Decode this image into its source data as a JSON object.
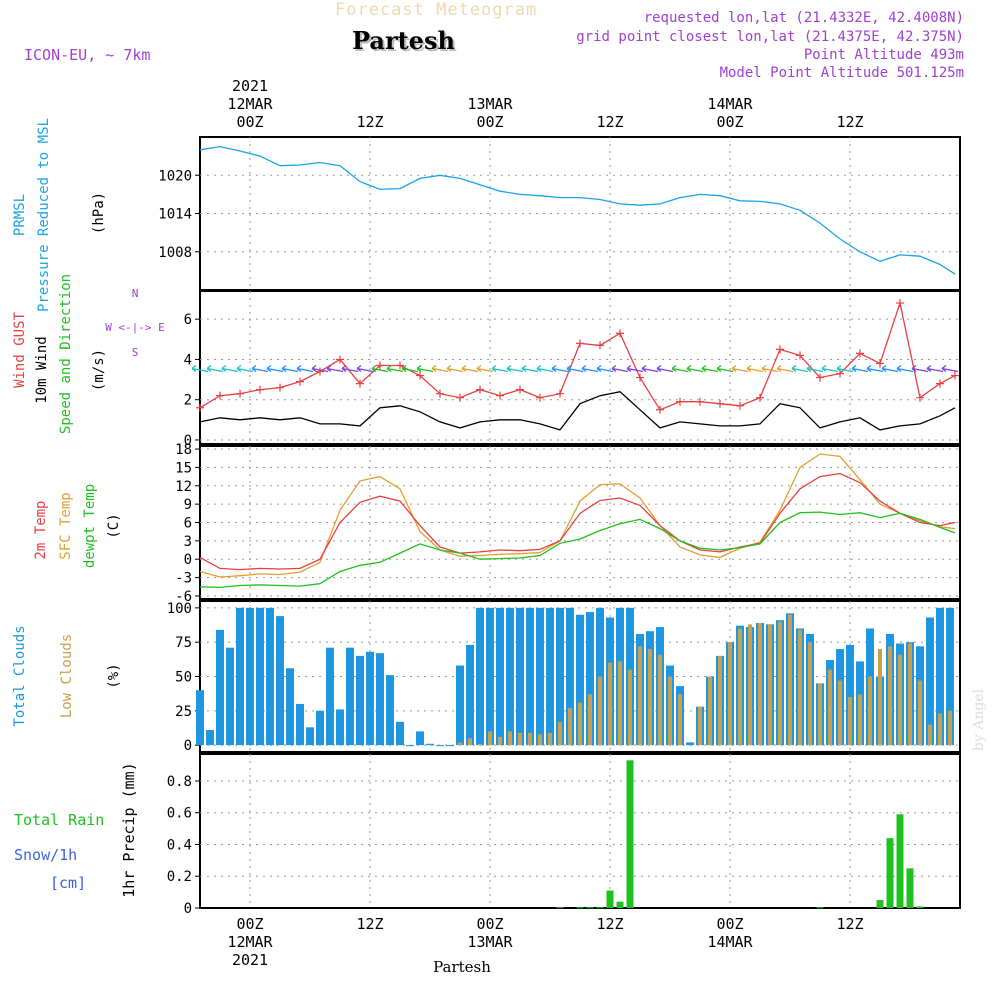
{
  "header": {
    "title": "Forecast Meteogram",
    "location": "Partesh",
    "model": "ICON-EU, ~ 7km",
    "requested": "requested lon,lat (21.4332E, 42.4008N)",
    "grid_point": "grid point closest lon,lat (21.4375E, 42.375N)",
    "point_altitude": "Point Altitude 493m",
    "model_altitude": "Model Point Altitude 501.125m"
  },
  "footer": {
    "location": "Partesh",
    "credit": "by Angel"
  },
  "time_axis": {
    "top": [
      {
        "t": 0,
        "lines": [
          "2021",
          "12MAR",
          "00Z"
        ]
      },
      {
        "t": 12,
        "lines": [
          "12Z"
        ]
      },
      {
        "t": 24,
        "lines": [
          "13MAR",
          "00Z"
        ]
      },
      {
        "t": 36,
        "lines": [
          "12Z"
        ]
      },
      {
        "t": 48,
        "lines": [
          "14MAR",
          "00Z"
        ]
      },
      {
        "t": 60,
        "lines": [
          "12Z"
        ]
      }
    ],
    "bottom": [
      {
        "t": 0,
        "lines": [
          "00Z",
          "12MAR",
          "2021"
        ]
      },
      {
        "t": 12,
        "lines": [
          "12Z"
        ]
      },
      {
        "t": 24,
        "lines": [
          "00Z",
          "13MAR"
        ]
      },
      {
        "t": 36,
        "lines": [
          "12Z"
        ]
      },
      {
        "t": 48,
        "lines": [
          "00Z",
          "14MAR"
        ]
      },
      {
        "t": 60,
        "lines": [
          "12Z"
        ]
      }
    ],
    "range_hours": [
      -5,
      71
    ]
  },
  "colors": {
    "pressure": "#1ba3e8",
    "gust": "#e84040",
    "wind": "#000000",
    "wind_dir": "#20c020",
    "t2m": "#e84040",
    "sfc": "#e0a030",
    "dew": "#20c020",
    "total_cloud": "#1e96e0",
    "low_cloud": "#c8a050",
    "rain": "#20c020",
    "snow": "#4060e0",
    "purple": "#a040d0"
  },
  "chart_data": [
    {
      "type": "line",
      "panel": "pressure",
      "labels": [
        "PRMSL",
        "Pressure Reduced to MSL"
      ],
      "unit": "(hPa)",
      "yticks": [
        1008,
        1014,
        1020
      ],
      "ylim": [
        1002,
        1026
      ],
      "x": [
        -5,
        -3,
        -1,
        1,
        3,
        5,
        7,
        9,
        11,
        13,
        15,
        17,
        19,
        21,
        23,
        25,
        27,
        29,
        31,
        33,
        35,
        37,
        39,
        41,
        43,
        45,
        47,
        49,
        51,
        53,
        55,
        57,
        59,
        61,
        63,
        65,
        67,
        69,
        70.5
      ],
      "series": [
        {
          "name": "PRMSL",
          "values": [
            1024,
            1024.5,
            1023.8,
            1023,
            1021.5,
            1021.6,
            1022,
            1021.5,
            1019,
            1017.8,
            1017.9,
            1019.5,
            1020,
            1019.5,
            1018.5,
            1017.5,
            1017,
            1016.8,
            1016.5,
            1016.5,
            1016.2,
            1015.5,
            1015.3,
            1015.5,
            1016.5,
            1017,
            1016.8,
            1016,
            1015.9,
            1015.5,
            1014.5,
            1012.5,
            1010,
            1008,
            1006.5,
            1007.5,
            1007.3,
            1006,
            1004.5
          ]
        }
      ]
    },
    {
      "type": "line",
      "panel": "wind",
      "labels": [
        "Wind GUST",
        "10m Wind",
        "Speed and Direction"
      ],
      "unit": "(m/s)",
      "compass": [
        "N",
        "W <-|-> E",
        "S"
      ],
      "yticks": [
        0,
        2,
        4,
        6
      ],
      "ylim": [
        -0.2,
        7.4
      ],
      "x": [
        -5,
        -3,
        -1,
        1,
        3,
        5,
        7,
        9,
        11,
        13,
        15,
        17,
        19,
        21,
        23,
        25,
        27,
        29,
        31,
        33,
        35,
        37,
        39,
        41,
        43,
        45,
        47,
        49,
        51,
        53,
        55,
        57,
        59,
        61,
        63,
        65,
        67,
        69,
        70.5
      ],
      "series": [
        {
          "name": "Wind GUST",
          "values": [
            1.6,
            2.2,
            2.3,
            2.5,
            2.6,
            2.9,
            3.4,
            4,
            2.8,
            3.7,
            3.7,
            3.2,
            2.3,
            2.1,
            2.5,
            2.2,
            2.5,
            2.1,
            2.3,
            4.8,
            4.7,
            5.3,
            3.1,
            1.5,
            1.9,
            1.9,
            1.8,
            1.7,
            2.1,
            4.5,
            4.2,
            3.1,
            3.3,
            4.3,
            3.8,
            6.8,
            2.1,
            2.8,
            3.2
          ]
        },
        {
          "name": "10m Wind",
          "values": [
            0.9,
            1.1,
            1,
            1.1,
            1,
            1.1,
            0.8,
            0.8,
            0.7,
            1.6,
            1.7,
            1.4,
            0.9,
            0.6,
            0.9,
            1,
            1,
            0.8,
            0.5,
            1.8,
            2.2,
            2.4,
            1.5,
            0.6,
            0.9,
            0.8,
            0.7,
            0.7,
            0.8,
            1.8,
            1.6,
            0.6,
            0.9,
            1.1,
            0.5,
            0.7,
            0.8,
            1.2,
            1.6
          ]
        }
      ]
    },
    {
      "type": "line",
      "panel": "temperature",
      "labels": [
        "2m Temp",
        "SFC Temp",
        "dewpt Temp"
      ],
      "unit": "(C)",
      "yticks": [
        -6,
        -3,
        0,
        3,
        6,
        9,
        12,
        15,
        18
      ],
      "ylim": [
        -6.5,
        18.5
      ],
      "x": [
        -5,
        -3,
        -1,
        1,
        3,
        5,
        7,
        9,
        11,
        13,
        15,
        17,
        19,
        21,
        23,
        25,
        27,
        29,
        31,
        33,
        35,
        37,
        39,
        41,
        43,
        45,
        47,
        49,
        51,
        53,
        55,
        57,
        59,
        61,
        63,
        65,
        67,
        69,
        70.5
      ],
      "series": [
        {
          "name": "2m Temp",
          "values": [
            0.3,
            -1.5,
            -1.7,
            -1.5,
            -1.6,
            -1.5,
            0,
            6,
            9.3,
            10.3,
            9.5,
            5.5,
            2,
            1,
            1.2,
            1.5,
            1.4,
            1.6,
            3,
            7.5,
            9.6,
            10,
            8.8,
            5.5,
            3,
            1.5,
            1.2,
            2,
            2.6,
            7.5,
            11.5,
            13.5,
            14,
            12.5,
            9.5,
            7.5,
            6,
            5.5,
            6
          ]
        },
        {
          "name": "SFC Temp",
          "values": [
            -2,
            -2.9,
            -2.7,
            -2.4,
            -2.5,
            -2.1,
            -0.5,
            8,
            12.8,
            13.5,
            11.5,
            4.5,
            1.5,
            0.5,
            0.6,
            0.8,
            0.9,
            1.1,
            3,
            9.5,
            12.2,
            12.3,
            10,
            5.5,
            2,
            0.7,
            0.3,
            1.8,
            2.8,
            8,
            15,
            17.2,
            16.8,
            13,
            9,
            7.5,
            6.3,
            5.3,
            5
          ]
        },
        {
          "name": "dewpt Temp",
          "values": [
            -4.5,
            -4.6,
            -4.3,
            -4.2,
            -4.3,
            -4.4,
            -4,
            -2,
            -1,
            -0.5,
            1,
            2.5,
            1.5,
            1,
            0,
            0.1,
            0.2,
            0.6,
            2.6,
            3.3,
            4.7,
            5.8,
            6.5,
            5,
            3,
            1.8,
            1.5,
            1.9,
            2.5,
            6,
            7.6,
            7.7,
            7.3,
            7.6,
            6.8,
            7.5,
            6.5,
            5.2,
            4.3
          ]
        }
      ]
    },
    {
      "type": "bar",
      "panel": "clouds",
      "labels": [
        "Total Clouds",
        "Low Clouds"
      ],
      "unit": "(%)",
      "yticks": [
        0,
        25,
        50,
        75,
        100
      ],
      "ylim": [
        -5,
        105
      ],
      "x": [
        -5,
        -4,
        -3,
        -2,
        -1,
        0,
        1,
        2,
        3,
        4,
        5,
        6,
        7,
        8,
        9,
        10,
        11,
        12,
        13,
        14,
        15,
        16,
        17,
        18,
        19,
        20,
        21,
        22,
        23,
        24,
        25,
        26,
        27,
        28,
        29,
        30,
        31,
        32,
        33,
        34,
        35,
        36,
        37,
        38,
        39,
        40,
        41,
        42,
        43,
        44,
        45,
        46,
        47,
        48,
        49,
        50,
        51,
        52,
        53,
        54,
        55,
        56,
        57,
        58,
        59,
        60,
        61,
        62,
        63,
        64,
        65,
        66,
        67,
        68,
        69,
        70
      ],
      "series": [
        {
          "name": "Total Clouds",
          "values": [
            40,
            11,
            84,
            71,
            100,
            100,
            100,
            100,
            94,
            56,
            30,
            13,
            25,
            71,
            26,
            71,
            65,
            68,
            67,
            51,
            17,
            0,
            10,
            1,
            0,
            0,
            58,
            73,
            100,
            100,
            100,
            100,
            100,
            100,
            100,
            100,
            100,
            100,
            95,
            97,
            100,
            93,
            100,
            100,
            81,
            83,
            86,
            58,
            43,
            2,
            28,
            50,
            65,
            75,
            87,
            86,
            89,
            88,
            91,
            96,
            85,
            81,
            45,
            62,
            70,
            73,
            61,
            85,
            50,
            81,
            74,
            75,
            72,
            93,
            100,
            100
          ]
        },
        {
          "name": "Low Clouds",
          "values": [
            0,
            0,
            0,
            0,
            0,
            0,
            0,
            0,
            0,
            0,
            0,
            0,
            0,
            0,
            0,
            0,
            0,
            0,
            0,
            0,
            0,
            0,
            0,
            0,
            0,
            0,
            2,
            5,
            1,
            10,
            6,
            10,
            9,
            9,
            8,
            9,
            17,
            27,
            31,
            37,
            50,
            60,
            61,
            55,
            72,
            70,
            66,
            50,
            37,
            0,
            28,
            50,
            65,
            75,
            85,
            88,
            89,
            88,
            90,
            95,
            84,
            75,
            45,
            55,
            47,
            35,
            37,
            50,
            70,
            72,
            66,
            74,
            47,
            15,
            23,
            25
          ]
        }
      ]
    },
    {
      "type": "bar",
      "panel": "precipitation",
      "labels": [
        "Total  Rain",
        "Snow/1h",
        "[cm]"
      ],
      "unit": "1hr Precip (mm)",
      "yticks": [
        0,
        0.2,
        0.4,
        0.6,
        0.8
      ],
      "ylim": [
        0,
        0.97
      ],
      "series": [
        {
          "name": "Total Rain",
          "x": [
            31,
            33,
            34,
            35,
            36,
            37,
            38,
            57,
            63,
            64,
            65,
            66,
            67
          ],
          "values": [
            0.005,
            0.005,
            0.005,
            0.005,
            0.11,
            0.04,
            0.93,
            0.005,
            0.05,
            0.44,
            0.59,
            0.25,
            0.01
          ]
        }
      ]
    }
  ]
}
